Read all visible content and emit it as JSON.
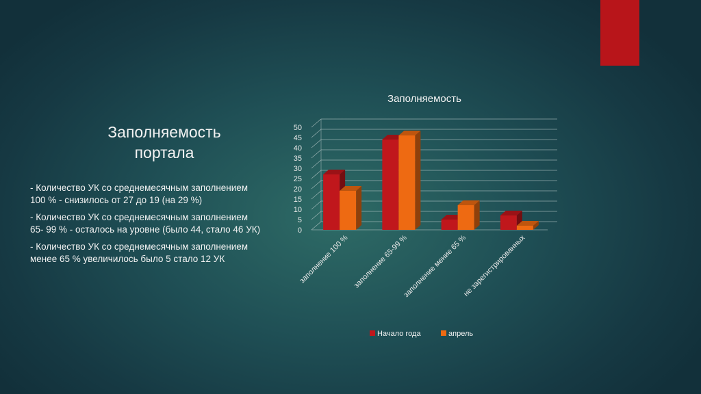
{
  "slide": {
    "title_line1": "Заполняемость",
    "title_line2": "портала",
    "bullets": [
      "- Количество УК со среднемесячным заполнением 100 % - снизилось от 27 до 19 (на 29 %)",
      "- Количество УК  со среднемесячным заполнением 65- 99 % - осталось на уровне (было 44, стало 46 УК)",
      "- Количество УК со среднемесячным заполнением менее 65 % увеличилось было 5 стало 12 УК"
    ]
  },
  "colors": {
    "accent_tab": "#b8151a",
    "series1": "#c0171c",
    "series2": "#ee6a12"
  },
  "chart_data": {
    "type": "bar",
    "title": "Заполняемость",
    "categories": [
      "заполнение 100 %",
      "заполнение 65-99 %",
      "заполнение мение 65 %",
      "не зарегистрированных"
    ],
    "series": [
      {
        "name": "Начало года",
        "values": [
          27,
          44,
          5,
          7
        ]
      },
      {
        "name": "апрель",
        "values": [
          19,
          46,
          12,
          2
        ]
      }
    ],
    "ylim": [
      0,
      50
    ],
    "yticks": [
      0,
      5,
      10,
      15,
      20,
      25,
      30,
      35,
      40,
      45,
      50
    ],
    "grid": true,
    "legend": "bottom",
    "style": "3d-columns"
  }
}
